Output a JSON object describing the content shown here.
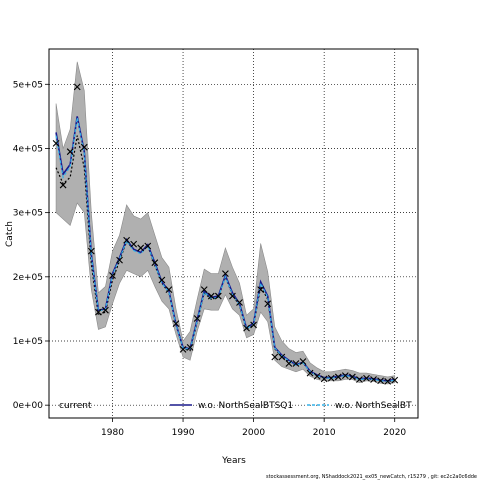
{
  "chart_data": {
    "type": "line",
    "title": "",
    "xlabel": "Years",
    "ylabel": "Catch",
    "xlim": [
      1971,
      2023.3
    ],
    "ylim": [
      -20000,
      555000
    ],
    "grid": true,
    "legend_placement": "bottom",
    "x_ticks": [
      1980,
      1990,
      2000,
      2010,
      2020
    ],
    "x_tick_labels": [
      "1980",
      "1990",
      "2000",
      "2010",
      "2020"
    ],
    "y_ticks": [
      0,
      100000,
      200000,
      300000,
      400000,
      500000
    ],
    "y_tick_labels": [
      "0e+00",
      "1e+05",
      "2e+05",
      "3e+05",
      "4e+05",
      "5e+05"
    ],
    "years": [
      1972,
      1973,
      1974,
      1975,
      1976,
      1977,
      1978,
      1979,
      1980,
      1981,
      1982,
      1983,
      1984,
      1985,
      1986,
      1987,
      1988,
      1989,
      1990,
      1991,
      1992,
      1993,
      1994,
      1995,
      1996,
      1997,
      1998,
      1999,
      2000,
      2001,
      2002,
      2003,
      2004,
      2005,
      2006,
      2007,
      2008,
      2009,
      2010,
      2011,
      2012,
      2013,
      2014,
      2015,
      2016,
      2017,
      2018,
      2019,
      2020
    ],
    "observed": [
      408000,
      343000,
      395000,
      496000,
      402000,
      240000,
      145000,
      148000,
      202000,
      226000,
      257000,
      251000,
      245000,
      248000,
      222000,
      195000,
      180000,
      127000,
      87000,
      90000,
      135000,
      180000,
      170000,
      170000,
      205000,
      170000,
      160000,
      120000,
      125000,
      180000,
      158000,
      75000,
      75000,
      65000,
      65000,
      68000,
      50000,
      45000,
      41000,
      42000,
      44000,
      46000,
      44000,
      40000,
      42000,
      40000,
      38000,
      37000,
      39000
    ],
    "band": {
      "lower": [
        300000,
        290000,
        280000,
        315000,
        300000,
        180000,
        118000,
        122000,
        158000,
        190000,
        210000,
        205000,
        200000,
        210000,
        185000,
        162000,
        150000,
        110000,
        75000,
        70000,
        115000,
        150000,
        148000,
        148000,
        172000,
        150000,
        140000,
        105000,
        110000,
        145000,
        130000,
        70000,
        60000,
        56000,
        52000,
        56000,
        45000,
        40000,
        38000,
        38000,
        38000,
        40000,
        40000,
        35000,
        38000,
        37000,
        34000,
        33000,
        35000
      ],
      "upper": [
        470000,
        400000,
        430000,
        535000,
        490000,
        300000,
        175000,
        185000,
        240000,
        265000,
        312000,
        295000,
        290000,
        300000,
        265000,
        230000,
        215000,
        150000,
        100000,
        115000,
        165000,
        212000,
        205000,
        205000,
        245000,
        215000,
        190000,
        140000,
        150000,
        252000,
        208000,
        122000,
        100000,
        88000,
        82000,
        84000,
        66000,
        58000,
        52000,
        52000,
        54000,
        56000,
        54000,
        50000,
        50000,
        48000,
        46000,
        44000,
        46000
      ]
    },
    "series": [
      {
        "name": "current",
        "color": "#000000",
        "style": "dotted",
        "values": [
          370000,
          345000,
          355000,
          420000,
          370000,
          220000,
          140000,
          145000,
          195000,
          225000,
          255000,
          243000,
          238000,
          248000,
          218000,
          190000,
          175000,
          125000,
          88000,
          85000,
          130000,
          175000,
          165000,
          168000,
          200000,
          172000,
          155000,
          118000,
          125000,
          185000,
          165000,
          88000,
          75000,
          68000,
          62000,
          66000,
          52000,
          46000,
          42000,
          42000,
          44000,
          46000,
          44000,
          40000,
          41000,
          40000,
          38000,
          37000,
          38000
        ]
      },
      {
        "name": "w.o. NorthSealBTSQ1",
        "color": "#1a1a8c",
        "style": "solid",
        "values": [
          425000,
          360000,
          375000,
          450000,
          395000,
          235000,
          148000,
          150000,
          205000,
          230000,
          258000,
          243000,
          238000,
          250000,
          222000,
          192000,
          178000,
          126000,
          90000,
          88000,
          133000,
          178000,
          168000,
          170000,
          202000,
          175000,
          158000,
          120000,
          128000,
          192000,
          170000,
          90000,
          78000,
          70000,
          63000,
          67000,
          53000,
          47000,
          43000,
          43000,
          45000,
          47000,
          45000,
          41000,
          42000,
          41000,
          39000,
          38000,
          40000
        ]
      },
      {
        "name": "w.o. NorthSealBT",
        "color": "#33b1e8",
        "style": "dashed",
        "values": [
          420000,
          355000,
          372000,
          448000,
          392000,
          232000,
          147000,
          149000,
          203000,
          228000,
          256000,
          241000,
          236000,
          248000,
          220000,
          190000,
          176000,
          125000,
          89000,
          87000,
          131000,
          176000,
          166000,
          168000,
          200000,
          173000,
          156000,
          119000,
          126000,
          190000,
          168000,
          89000,
          77000,
          69000,
          62000,
          66000,
          52000,
          46000,
          42000,
          42000,
          44000,
          46000,
          44000,
          40000,
          41000,
          40000,
          38000,
          37000,
          39000
        ]
      }
    ]
  },
  "footer": "stockassessment.org, NShaddock2021_ex05_newCatch, r15279 ,  git: ec2c2a0c6dde",
  "colors": {
    "band": "#b0b0b0",
    "grid": "#000000",
    "marker": "#000000"
  }
}
